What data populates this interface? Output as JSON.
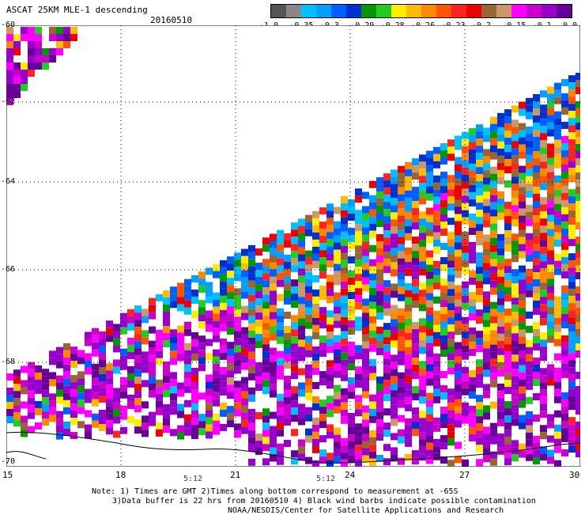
{
  "header": {
    "title": "ASCAT 25KM MLE-1 descending",
    "date": "20160510"
  },
  "colorbar": {
    "colors": [
      "#555555",
      "#888888",
      "#00c0ff",
      "#00a0ff",
      "#0060ff",
      "#0030d0",
      "#009900",
      "#22cc22",
      "#ffee00",
      "#ffbb00",
      "#ff8800",
      "#ff5500",
      "#ff2222",
      "#ee0000",
      "#996633",
      "#cc9966",
      "#ff00ff",
      "#cc00cc",
      "#9900cc",
      "#660099"
    ],
    "ticks": [
      "-1.0",
      "-0.35",
      "-0.3",
      "-0.29",
      "-0.28",
      "-0.26",
      "-0.23",
      "-0.2",
      "-0.15",
      "-0.1",
      "0.0"
    ]
  },
  "axes": {
    "x_ticks": [
      "15",
      "18",
      "21",
      "24",
      "27",
      "30"
    ],
    "y_ticks": [
      "-60",
      "-62",
      "-64",
      "-66",
      "-68",
      "-70"
    ]
  },
  "swath_times": [
    "5:12",
    "5:12"
  ],
  "notes": [
    "Note: 1) Times are GMT 2)Times along bottom correspond to measurement at -65S",
    "3)Data buffer is 22 hrs from 20160510 4) Black wind barbs indicate possible contamination",
    "NOAA/NESDIS/Center for Satellite Applications and Research"
  ]
}
